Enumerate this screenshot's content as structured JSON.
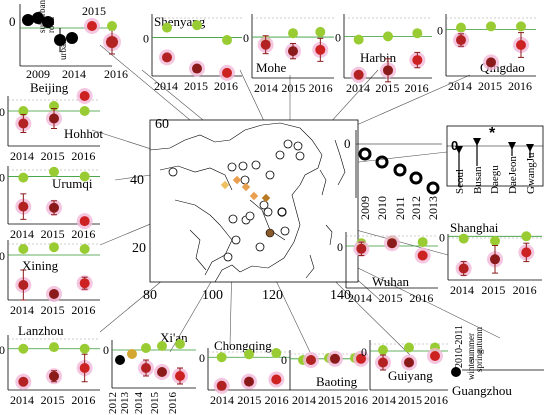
{
  "chart_data": {
    "type": "scatter",
    "map": {
      "x_ticks": [
        "80",
        "100",
        "120",
        "140"
      ],
      "y_ticks": [
        "20",
        "40",
        "60"
      ],
      "xlim": [
        75,
        145
      ],
      "ylim": [
        12,
        62
      ]
    },
    "colors": {
      "y2014": "#b22222",
      "y2015": "#8b1a1a",
      "y2016": "#cc2222",
      "green": "#99cc33",
      "halo": "#f2b8d8",
      "ref_line": "#339933",
      "connector": "#555555"
    },
    "panels": [
      {
        "key": "beijing",
        "city": "Beijing",
        "zero_label": "0",
        "extra_labels": [
          "2009",
          "2014",
          "2015",
          "2016"
        ],
        "notes": [
          "suburban",
          "road",
          "urban"
        ]
      },
      {
        "key": "shenyang",
        "city": "Shenyang",
        "zero_label": "0",
        "years": [
          "2014",
          "2015",
          "2016"
        ]
      },
      {
        "key": "mohe",
        "city": "Mohe",
        "zero_label": "0",
        "years": [
          "2014",
          "2015",
          "2016"
        ]
      },
      {
        "key": "harbin",
        "city": "Harbin",
        "zero_label": "0",
        "years": [
          "2014",
          "2015",
          "2016"
        ]
      },
      {
        "key": "qingdao",
        "city": "Qingdao",
        "zero_label": "0",
        "years": [
          "2014",
          "2015",
          "2016"
        ]
      },
      {
        "key": "hohhot",
        "city": "Hohhot",
        "zero_label": "0",
        "years": [
          "2014",
          "2015",
          "2016"
        ]
      },
      {
        "key": "urumqi",
        "city": "Urumqi",
        "zero_label": "0",
        "years": [
          "2014",
          "2015",
          "2016"
        ]
      },
      {
        "key": "xining",
        "city": "Xining",
        "zero_label": "0",
        "years": [
          "2014",
          "2015",
          "2016"
        ]
      },
      {
        "key": "lanzhou",
        "city": "Lanzhou",
        "zero_label": "0",
        "years": [
          "2014",
          "2015",
          "2016"
        ]
      },
      {
        "key": "xian",
        "city": "Xi'an",
        "zero_label": "0",
        "years": [
          "2012",
          "2013",
          "2014",
          "2015",
          "2016"
        ]
      },
      {
        "key": "chongqing",
        "city": "Chongqing",
        "zero_label": "0",
        "years": [
          "2014",
          "2015",
          "2016"
        ]
      },
      {
        "key": "baoting",
        "city": "Baoting",
        "zero_label": "0",
        "years": [
          "2014",
          "2015",
          "2016"
        ]
      },
      {
        "key": "guiyang",
        "city": "Guiyang",
        "zero_label": "0",
        "years": [
          "2014",
          "2015",
          "2016"
        ]
      },
      {
        "key": "wuhan",
        "city": "Wuhan",
        "zero_label": "0",
        "years": [
          "2014",
          "2015",
          "2016"
        ]
      },
      {
        "key": "shanghai",
        "city": "Shanghai",
        "zero_label": "0",
        "years": [
          "2014",
          "2015",
          "2016"
        ]
      },
      {
        "key": "guangzhou",
        "city": "Guangzhou",
        "zero_label": "0",
        "extra_labels": [
          "2010-2011",
          "summer",
          "autumn",
          "winter",
          "spring"
        ]
      },
      {
        "key": "korea",
        "city": "",
        "zero_label": "0",
        "extra_labels": [
          "Seoul",
          "Busan",
          "Daegu",
          "DaeJeon",
          "GwangJu"
        ]
      },
      {
        "key": "japan",
        "city": "",
        "zero_label": "0",
        "extra_labels": [
          "2009",
          "2010",
          "2011",
          "2012",
          "2013"
        ]
      }
    ]
  }
}
